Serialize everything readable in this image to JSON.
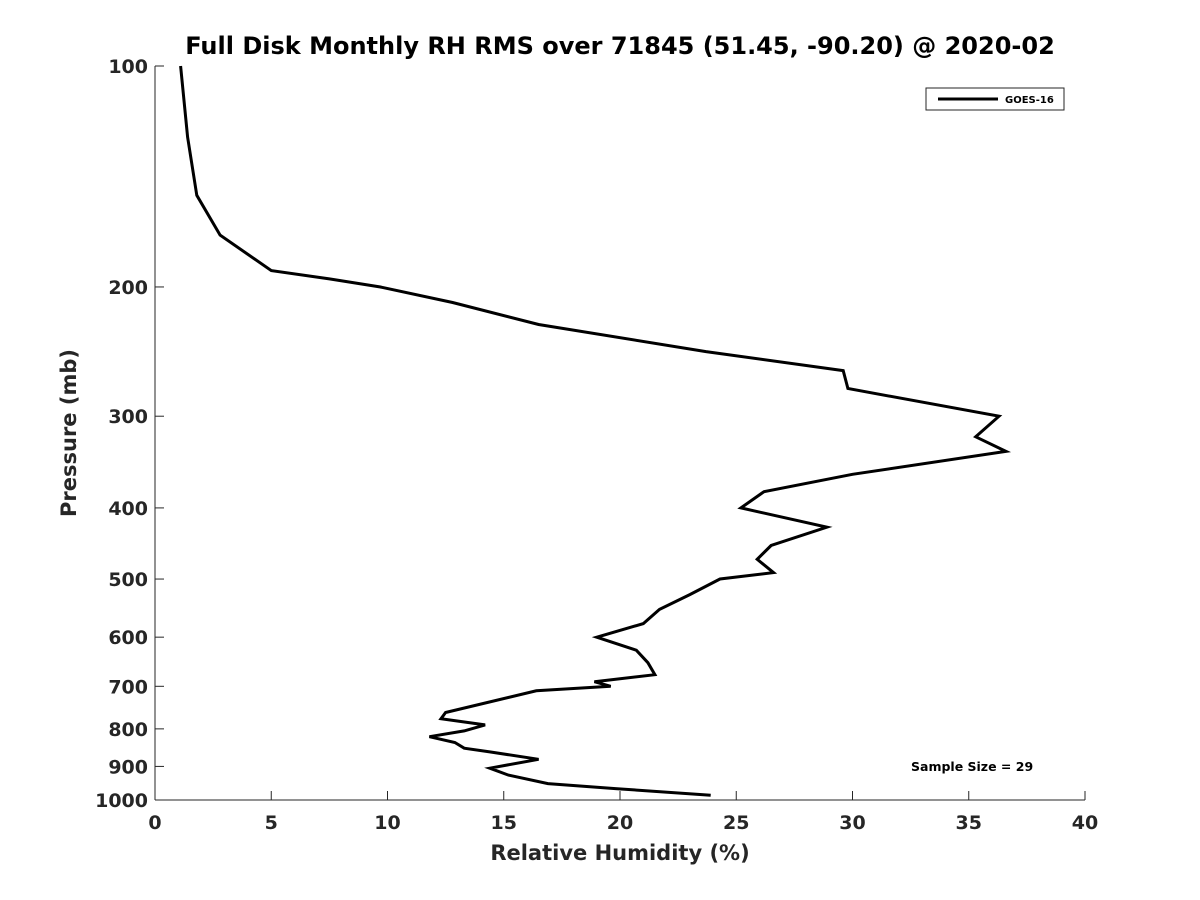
{
  "chart_data": {
    "type": "line",
    "title": "Full Disk Monthly RH RMS over 71845 (51.45, -90.20) @ 2020-02",
    "xlabel": "Relative Humidity (%)",
    "ylabel": "Pressure (mb)",
    "xlim": [
      0,
      40
    ],
    "ylim": [
      100,
      1000
    ],
    "y_scale": "log",
    "y_reversed": true,
    "grid": false,
    "x_ticks": [
      0,
      5,
      10,
      15,
      20,
      25,
      30,
      35,
      40
    ],
    "x_tick_labels": [
      "0",
      "5",
      "10",
      "15",
      "20",
      "25",
      "30",
      "35",
      "40"
    ],
    "y_ticks": [
      100,
      200,
      300,
      400,
      500,
      600,
      700,
      800,
      900,
      1000
    ],
    "y_tick_labels": [
      "100",
      "200",
      "300",
      "400",
      "500",
      "600",
      "700",
      "800",
      "900",
      "1000"
    ],
    "legend": {
      "position": "top-right",
      "entries": [
        "GOES-16"
      ]
    },
    "annotation": "Sample Size = 29",
    "series": [
      {
        "name": "GOES-16",
        "color": "#000000",
        "points": [
          [
            1.1,
            100
          ],
          [
            1.4,
            125
          ],
          [
            1.8,
            150
          ],
          [
            2.8,
            170
          ],
          [
            5.0,
            190
          ],
          [
            7.5,
            195
          ],
          [
            9.7,
            200
          ],
          [
            12.8,
            210
          ],
          [
            16.5,
            225
          ],
          [
            23.7,
            245
          ],
          [
            29.6,
            260
          ],
          [
            29.8,
            275
          ],
          [
            36.3,
            300
          ],
          [
            35.3,
            320
          ],
          [
            36.6,
            335
          ],
          [
            30.0,
            360
          ],
          [
            26.2,
            380
          ],
          [
            25.2,
            400
          ],
          [
            28.9,
            425
          ],
          [
            26.5,
            450
          ],
          [
            25.9,
            470
          ],
          [
            26.6,
            490
          ],
          [
            24.3,
            500
          ],
          [
            23.0,
            525
          ],
          [
            21.7,
            550
          ],
          [
            21.0,
            575
          ],
          [
            19.0,
            600
          ],
          [
            20.7,
            625
          ],
          [
            21.2,
            650
          ],
          [
            21.5,
            675
          ],
          [
            18.9,
            690
          ],
          [
            19.6,
            700
          ],
          [
            16.4,
            710
          ],
          [
            12.5,
            760
          ],
          [
            12.3,
            775
          ],
          [
            14.2,
            790
          ],
          [
            13.3,
            805
          ],
          [
            11.8,
            820
          ],
          [
            12.9,
            835
          ],
          [
            13.3,
            850
          ],
          [
            14.4,
            860
          ],
          [
            16.5,
            880
          ],
          [
            14.4,
            905
          ],
          [
            15.2,
            925
          ],
          [
            16.9,
            950
          ],
          [
            19.8,
            965
          ],
          [
            23.9,
            985
          ]
        ]
      }
    ]
  }
}
